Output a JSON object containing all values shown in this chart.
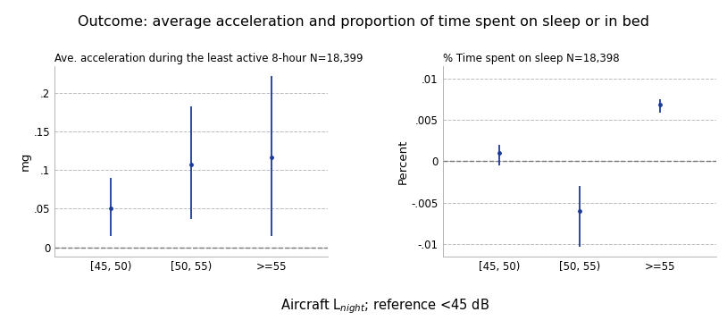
{
  "title": "Outcome: average acceleration and proportion of time spent on sleep or in bed",
  "xlabel": "Aircraft L$_{night}$; reference <45 dB",
  "categories": [
    "[45, 50)",
    "[50, 55)",
    ">=55"
  ],
  "left": {
    "subtitle": "Ave. acceleration during the least active 8-hour N=18,399",
    "ylabel": "mg",
    "ylim": [
      -0.012,
      0.235
    ],
    "yticks": [
      0.0,
      0.05,
      0.1,
      0.15,
      0.2
    ],
    "yticklabels": [
      "0",
      ".05",
      ".1",
      ".15",
      ".2"
    ],
    "centers": [
      0.05,
      0.107,
      0.116
    ],
    "ci_low": [
      0.015,
      0.037,
      0.015
    ],
    "ci_high": [
      0.09,
      0.183,
      0.222
    ],
    "hline": 0.0
  },
  "right": {
    "subtitle": "% Time spent on sleep N=18,398",
    "ylabel": "Percent",
    "ylim": [
      -0.0115,
      0.0115
    ],
    "yticks": [
      -0.01,
      -0.005,
      0.0,
      0.005,
      0.01
    ],
    "yticklabels": [
      "-.01",
      "-.005",
      "0",
      ".005",
      ".01"
    ],
    "centers": [
      0.001,
      -0.006,
      0.0068
    ],
    "ci_low": [
      -0.0005,
      -0.0103,
      0.0059
    ],
    "ci_high": [
      0.002,
      -0.003,
      0.0075
    ],
    "hline": 0.0
  },
  "dot_color": "#1a3a9c",
  "line_color": "#1a3a9c",
  "hline_color": "#777777",
  "bg_color": "#ffffff",
  "title_fontsize": 11.5,
  "subtitle_fontsize": 8.5,
  "tick_fontsize": 8.5,
  "ylabel_fontsize": 9.5,
  "xlabel_fontsize": 10.5
}
